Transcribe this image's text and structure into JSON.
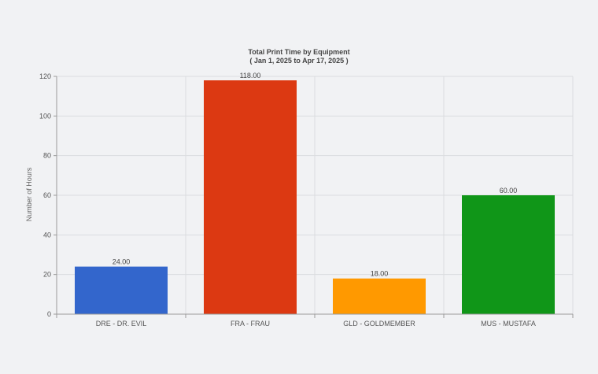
{
  "colors": {
    "background": "#f1f2f4",
    "grid": "#dadcdf",
    "axis": "#9a9a9a"
  },
  "chart_data": {
    "type": "bar",
    "title": "Total Print Time by Equipment",
    "subtitle": "( Jan 1, 2025 to Apr 17, 2025 )",
    "xlabel": "",
    "ylabel": "Number of Hours",
    "ylim": [
      0,
      120
    ],
    "yticks": [
      0,
      20,
      40,
      60,
      80,
      100,
      120
    ],
    "grid": true,
    "legend": "none",
    "categories": [
      "DRE - DR. EVIL",
      "FRA - FRAU",
      "GLD - GOLDMEMBER",
      "MUS - MUSTAFA"
    ],
    "values": [
      24,
      118,
      18,
      60
    ],
    "value_labels": [
      "24.00",
      "118.00",
      "18.00",
      "60.00"
    ],
    "bar_colors": [
      "#3366cc",
      "#dc3912",
      "#ff9900",
      "#109618"
    ]
  }
}
